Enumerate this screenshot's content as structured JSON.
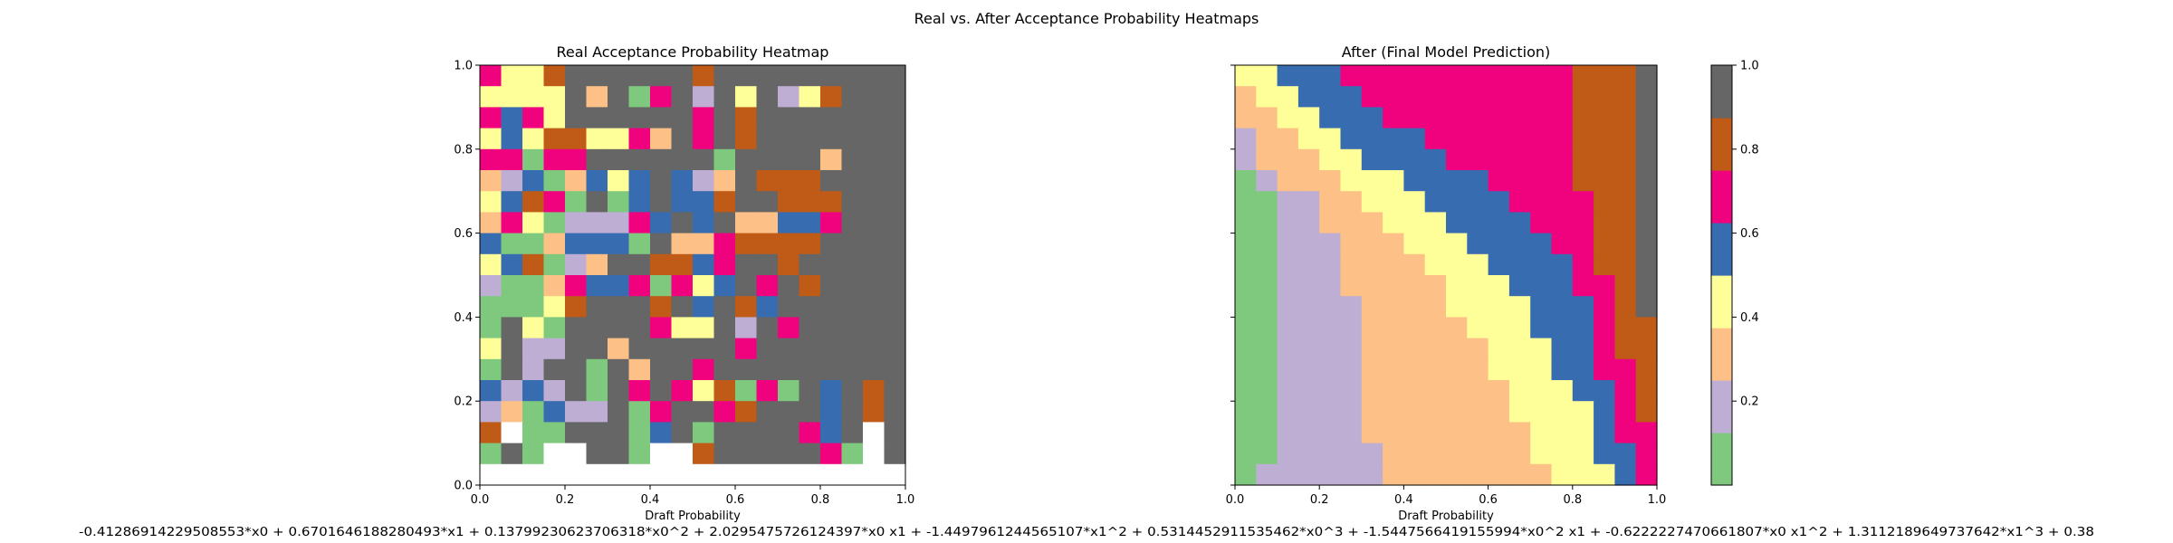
{
  "figure": {
    "suptitle": "Real vs. After Acceptance Probability Heatmaps",
    "equation": "-0.41286914229508553*x0 + 0.6701646188280493*x1 + 0.13799230623706318*x0^2 + 2.0295475726124397*x0 x1 + -1.4497961244565107*x1^2 + 0.5314452911535462*x0^3 + -1.5447566419155994*x0^2 x1 + -0.6222227470661807*x0 x1^2 + 1.3112189649737642*x1^3 + 0.38"
  },
  "colormap": {
    "name": "Accent",
    "colors": [
      "#7fc97f",
      "#beaed4",
      "#fdc086",
      "#ffff99",
      "#386cb0",
      "#f0027f",
      "#bf5b17",
      "#666666"
    ],
    "empty_color": "#ffffff"
  },
  "colorbar": {
    "range": [
      0.0,
      1.0
    ],
    "tick_values": [
      0.2,
      0.4,
      0.6,
      0.8,
      1.0
    ],
    "tick_labels": [
      "0.2",
      "0.4",
      "0.6",
      "0.8",
      "1.0"
    ]
  },
  "chart_data": [
    {
      "type": "heatmap",
      "title": "Real Acceptance Probability Heatmap",
      "xlabel": "Draft Probability",
      "ylabel": "",
      "xlim": [
        0,
        1
      ],
      "ylim": [
        0,
        1
      ],
      "grid": false,
      "x_tick_labels": [
        "0.0",
        "0.2",
        "0.4",
        "0.6",
        "0.8",
        "1.0"
      ],
      "y_tick_labels": [
        "0.0",
        "0.2",
        "0.4",
        "0.6",
        "0.8",
        "1.0"
      ],
      "bins": 20,
      "note": "rows listed from top (y=1.0) to bottom (y=0.0); values are colour-class indices 0-7 of the Accent colormap, -1 = empty bin",
      "cells": [
        [
          5,
          3,
          3,
          6,
          7,
          7,
          7,
          7,
          7,
          7,
          6,
          7,
          7,
          7,
          7,
          7,
          7,
          7,
          7,
          7
        ],
        [
          3,
          3,
          3,
          3,
          7,
          2,
          7,
          0,
          5,
          7,
          1,
          7,
          3,
          7,
          1,
          3,
          6,
          7,
          7,
          7
        ],
        [
          5,
          4,
          5,
          3,
          7,
          7,
          7,
          7,
          7,
          7,
          5,
          7,
          6,
          7,
          7,
          7,
          7,
          7,
          7,
          7
        ],
        [
          3,
          4,
          3,
          6,
          6,
          3,
          3,
          5,
          2,
          7,
          5,
          7,
          6,
          7,
          7,
          7,
          7,
          7,
          7,
          7
        ],
        [
          5,
          5,
          0,
          5,
          5,
          7,
          7,
          7,
          7,
          7,
          7,
          0,
          7,
          7,
          7,
          7,
          2,
          7,
          7,
          7
        ],
        [
          2,
          1,
          4,
          0,
          2,
          4,
          3,
          4,
          7,
          4,
          1,
          2,
          7,
          6,
          6,
          6,
          7,
          7,
          7,
          7
        ],
        [
          3,
          4,
          6,
          5,
          0,
          7,
          0,
          4,
          7,
          4,
          4,
          6,
          7,
          7,
          6,
          6,
          6,
          7,
          7,
          7
        ],
        [
          2,
          5,
          3,
          0,
          1,
          1,
          1,
          5,
          4,
          7,
          4,
          7,
          2,
          2,
          4,
          4,
          5,
          7,
          7,
          7
        ],
        [
          4,
          0,
          0,
          2,
          4,
          4,
          4,
          0,
          7,
          2,
          2,
          5,
          6,
          6,
          6,
          6,
          7,
          7,
          7,
          7
        ],
        [
          3,
          4,
          6,
          0,
          1,
          2,
          7,
          7,
          6,
          6,
          4,
          5,
          7,
          7,
          6,
          7,
          7,
          7,
          7,
          7
        ],
        [
          1,
          0,
          0,
          2,
          5,
          4,
          4,
          5,
          0,
          5,
          3,
          4,
          7,
          5,
          7,
          6,
          7,
          7,
          7,
          7
        ],
        [
          0,
          0,
          0,
          3,
          6,
          7,
          7,
          7,
          6,
          7,
          4,
          7,
          6,
          4,
          7,
          7,
          7,
          7,
          7,
          7
        ],
        [
          0,
          7,
          3,
          0,
          7,
          7,
          7,
          7,
          5,
          3,
          3,
          7,
          1,
          7,
          5,
          7,
          7,
          7,
          7,
          7
        ],
        [
          3,
          7,
          1,
          1,
          7,
          7,
          2,
          7,
          7,
          7,
          7,
          7,
          5,
          7,
          7,
          7,
          7,
          7,
          7,
          7
        ],
        [
          0,
          7,
          1,
          7,
          7,
          0,
          7,
          2,
          7,
          7,
          5,
          7,
          7,
          7,
          7,
          7,
          7,
          7,
          7,
          7
        ],
        [
          4,
          1,
          4,
          1,
          7,
          0,
          7,
          5,
          7,
          5,
          3,
          6,
          0,
          5,
          0,
          7,
          4,
          7,
          6,
          7
        ],
        [
          1,
          2,
          0,
          4,
          1,
          1,
          7,
          0,
          5,
          7,
          7,
          5,
          6,
          7,
          7,
          7,
          4,
          7,
          6,
          7
        ],
        [
          6,
          -1,
          0,
          0,
          7,
          7,
          7,
          0,
          4,
          7,
          0,
          7,
          7,
          7,
          7,
          5,
          4,
          7,
          -1,
          7
        ],
        [
          0,
          7,
          0,
          -1,
          -1,
          7,
          7,
          0,
          -1,
          -1,
          6,
          7,
          7,
          7,
          7,
          7,
          5,
          0,
          -1,
          7
        ],
        [
          -1,
          -1,
          -1,
          -1,
          -1,
          -1,
          -1,
          -1,
          -1,
          -1,
          -1,
          -1,
          -1,
          -1,
          -1,
          -1,
          -1,
          -1,
          -1,
          -1
        ]
      ]
    },
    {
      "type": "heatmap",
      "title": "After (Final Model Prediction)",
      "xlabel": "Draft Probability",
      "ylabel": "",
      "xlim": [
        0,
        1
      ],
      "ylim": [
        0,
        1
      ],
      "grid": false,
      "x_tick_labels": [
        "0.0",
        "0.2",
        "0.4",
        "0.6",
        "0.8",
        "1.0"
      ],
      "y_tick_labels": [],
      "bins": 20,
      "note": "rows listed from top (y=1.0) to bottom (y=0.0); values are colour-class indices 0-7 of the Accent colormap",
      "cells": [
        [
          3,
          3,
          4,
          4,
          4,
          5,
          5,
          5,
          5,
          5,
          5,
          5,
          5,
          5,
          5,
          5,
          6,
          6,
          6,
          7
        ],
        [
          2,
          3,
          3,
          4,
          4,
          4,
          5,
          5,
          5,
          5,
          5,
          5,
          5,
          5,
          5,
          5,
          6,
          6,
          6,
          7
        ],
        [
          2,
          2,
          3,
          3,
          4,
          4,
          4,
          5,
          5,
          5,
          5,
          5,
          5,
          5,
          5,
          5,
          6,
          6,
          6,
          7
        ],
        [
          1,
          2,
          2,
          3,
          3,
          4,
          4,
          4,
          4,
          5,
          5,
          5,
          5,
          5,
          5,
          5,
          6,
          6,
          6,
          7
        ],
        [
          1,
          2,
          2,
          2,
          3,
          3,
          4,
          4,
          4,
          4,
          5,
          5,
          5,
          5,
          5,
          5,
          6,
          6,
          6,
          7
        ],
        [
          0,
          1,
          2,
          2,
          2,
          3,
          3,
          3,
          4,
          4,
          4,
          4,
          5,
          5,
          5,
          5,
          6,
          6,
          6,
          7
        ],
        [
          0,
          0,
          1,
          1,
          2,
          2,
          3,
          3,
          3,
          4,
          4,
          4,
          4,
          5,
          5,
          5,
          5,
          6,
          6,
          7
        ],
        [
          0,
          0,
          1,
          1,
          2,
          2,
          2,
          3,
          3,
          3,
          4,
          4,
          4,
          4,
          5,
          5,
          5,
          6,
          6,
          7
        ],
        [
          0,
          0,
          1,
          1,
          1,
          2,
          2,
          2,
          3,
          3,
          3,
          4,
          4,
          4,
          4,
          5,
          5,
          6,
          6,
          7
        ],
        [
          0,
          0,
          1,
          1,
          1,
          2,
          2,
          2,
          2,
          3,
          3,
          3,
          4,
          4,
          4,
          4,
          5,
          6,
          6,
          7
        ],
        [
          0,
          0,
          1,
          1,
          1,
          2,
          2,
          2,
          2,
          2,
          3,
          3,
          3,
          4,
          4,
          4,
          5,
          5,
          6,
          7
        ],
        [
          0,
          0,
          1,
          1,
          1,
          1,
          2,
          2,
          2,
          2,
          3,
          3,
          3,
          3,
          4,
          4,
          4,
          5,
          6,
          7
        ],
        [
          0,
          0,
          1,
          1,
          1,
          1,
          2,
          2,
          2,
          2,
          2,
          3,
          3,
          3,
          4,
          4,
          4,
          5,
          6,
          6
        ],
        [
          0,
          0,
          1,
          1,
          1,
          1,
          2,
          2,
          2,
          2,
          2,
          2,
          3,
          3,
          3,
          4,
          4,
          5,
          6,
          6
        ],
        [
          0,
          0,
          1,
          1,
          1,
          1,
          2,
          2,
          2,
          2,
          2,
          2,
          3,
          3,
          3,
          4,
          4,
          5,
          5,
          6
        ],
        [
          0,
          0,
          1,
          1,
          1,
          1,
          2,
          2,
          2,
          2,
          2,
          2,
          2,
          3,
          3,
          3,
          4,
          4,
          5,
          6
        ],
        [
          0,
          0,
          1,
          1,
          1,
          1,
          2,
          2,
          2,
          2,
          2,
          2,
          2,
          3,
          3,
          3,
          3,
          4,
          5,
          6
        ],
        [
          0,
          0,
          1,
          1,
          1,
          1,
          2,
          2,
          2,
          2,
          2,
          2,
          2,
          2,
          3,
          3,
          3,
          4,
          5,
          5
        ],
        [
          0,
          0,
          1,
          1,
          1,
          1,
          1,
          2,
          2,
          2,
          2,
          2,
          2,
          2,
          3,
          3,
          3,
          4,
          4,
          5
        ],
        [
          0,
          1,
          1,
          1,
          1,
          1,
          1,
          2,
          2,
          2,
          2,
          2,
          2,
          2,
          2,
          3,
          3,
          3,
          4,
          5
        ]
      ]
    }
  ]
}
